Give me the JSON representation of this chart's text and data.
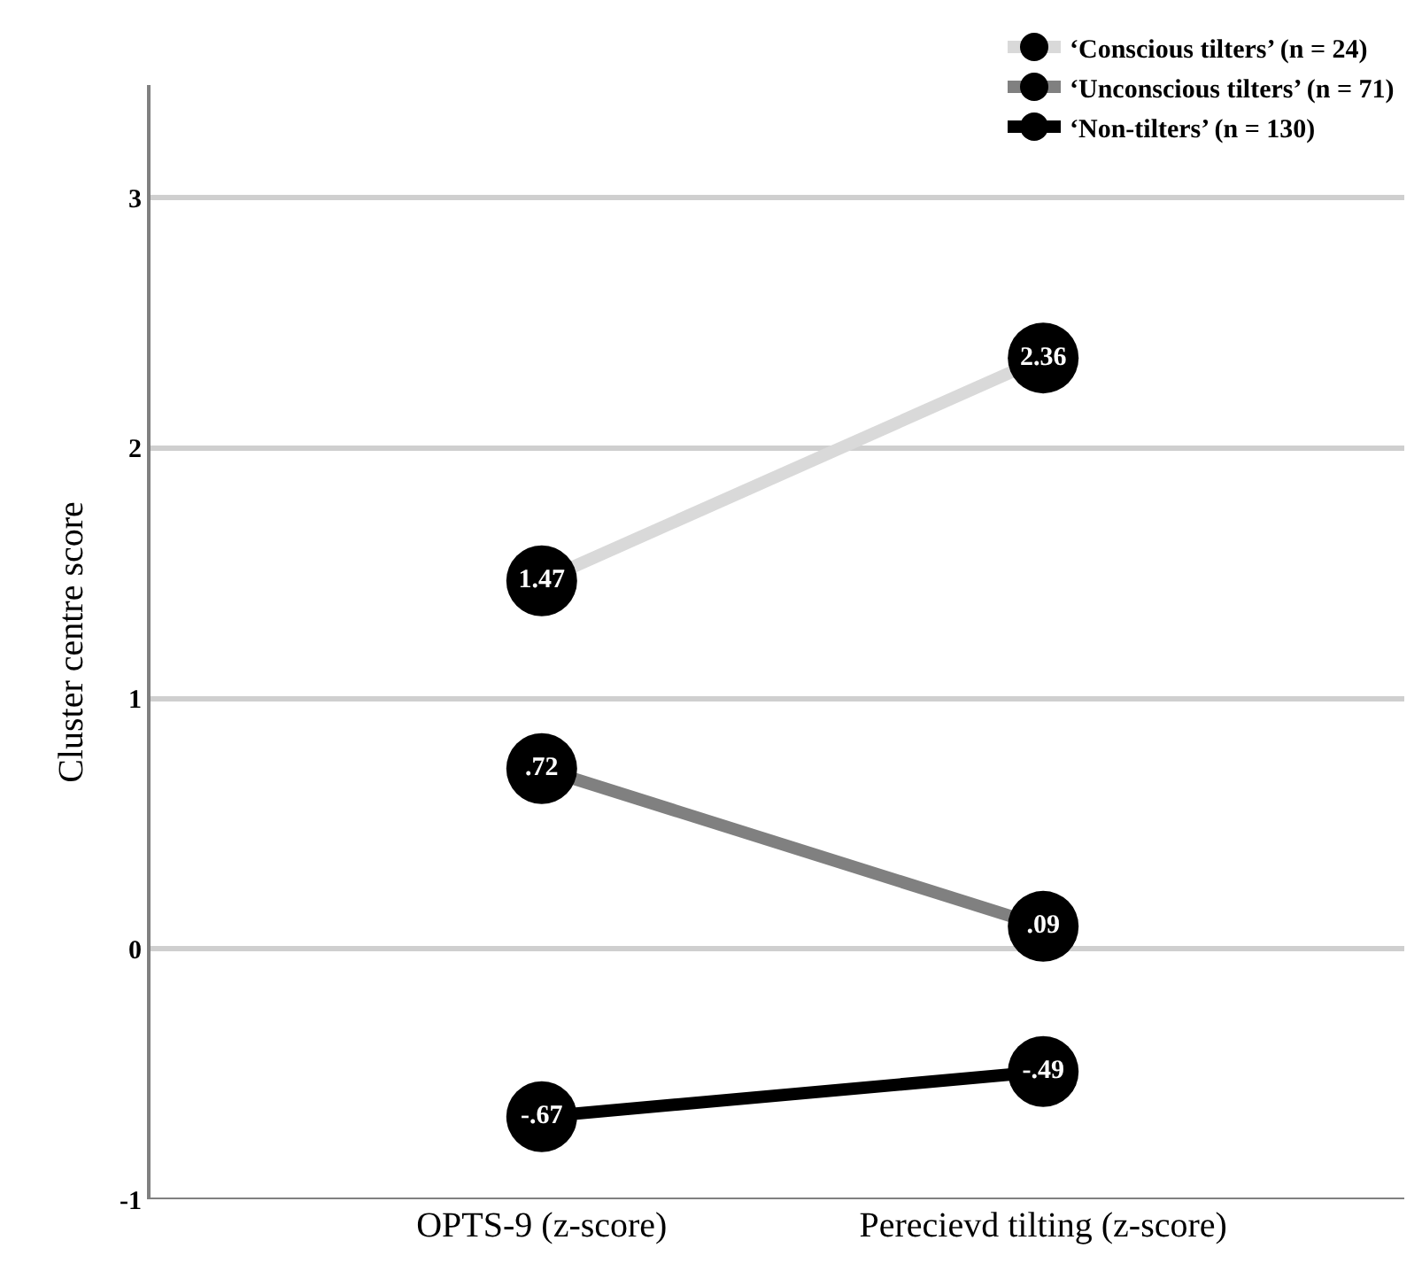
{
  "chart_data": {
    "type": "line",
    "ylabel": "Cluster centre score",
    "categories": [
      "OPTS-9 (z-score)",
      "Perecievd tilting (z-score)"
    ],
    "series": [
      {
        "name": "‘Conscious tilters’ (n = 24)",
        "color": "#d9d9d9",
        "values": [
          1.47,
          2.36
        ],
        "value_labels": [
          "1.47",
          "2.36"
        ]
      },
      {
        "name": "‘Unconscious tilters’ (n = 71)",
        "color": "#808080",
        "values": [
          0.72,
          0.09
        ],
        "value_labels": [
          ".72",
          ".09"
        ]
      },
      {
        "name": "‘Non-tilters’ (n = 130)",
        "color": "#000000",
        "values": [
          -0.67,
          -0.49
        ],
        "value_labels": [
          "-.67",
          "-.49"
        ]
      }
    ],
    "ylim": [
      -1,
      3.45
    ],
    "yticks": [
      -1,
      0,
      1,
      2,
      3
    ],
    "grid": "y",
    "legend": "top right",
    "marker": "circle",
    "line_style": "solid"
  }
}
